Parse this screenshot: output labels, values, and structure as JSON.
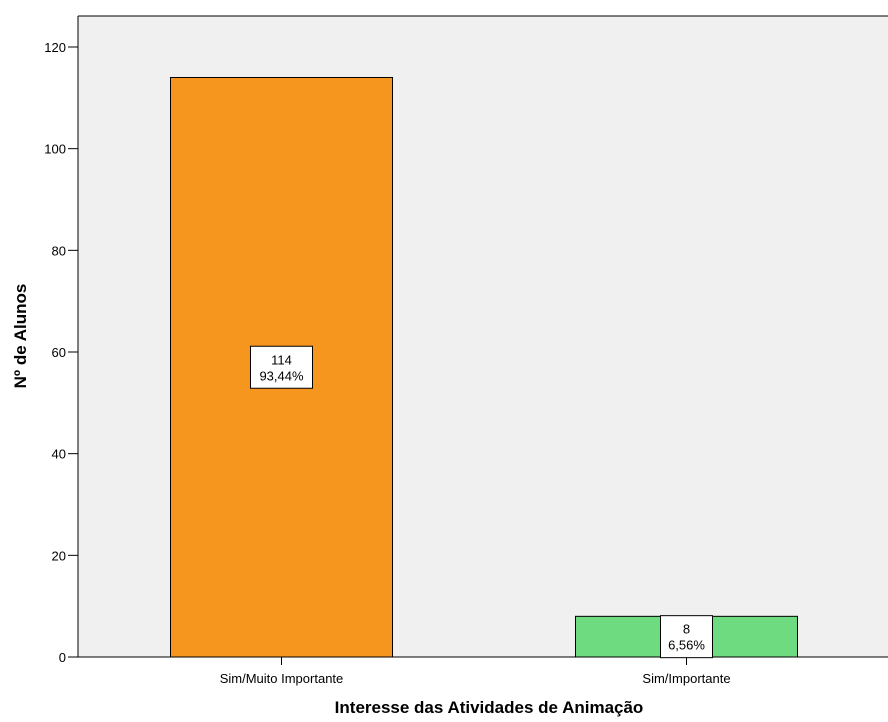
{
  "chart_data": {
    "type": "bar",
    "title": "",
    "xlabel": "Interesse das Atividades de Animação",
    "ylabel": "Nº de Alunos",
    "categories": [
      "Sim/Muito Importante",
      "Sim/Importante"
    ],
    "values": [
      114,
      8
    ],
    "data_labels": [
      {
        "count": "114",
        "percent": "93,44%"
      },
      {
        "count": "8",
        "percent": "6,56%"
      }
    ],
    "colors": [
      "#f7961e",
      "#6fdb81"
    ],
    "ylim": [
      0,
      120
    ],
    "yticks": [
      0,
      20,
      40,
      60,
      80,
      100,
      120
    ],
    "grid": false,
    "plot_background": "#f0f0f0"
  }
}
